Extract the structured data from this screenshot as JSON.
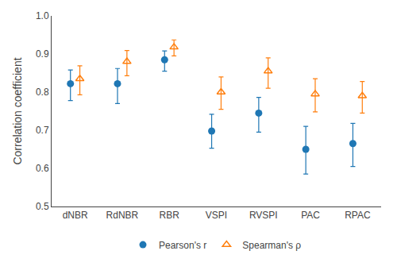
{
  "chart_data": {
    "type": "scatter",
    "categories": [
      "dNBR",
      "RdNBR",
      "RBR",
      "VSPI",
      "RVSPI",
      "PAC",
      "RPAC"
    ],
    "series": [
      {
        "name": "Pearson's r",
        "marker": "circle",
        "values": [
          0.822,
          0.822,
          0.885,
          0.698,
          0.745,
          0.65,
          0.665
        ],
        "lower": [
          0.778,
          0.77,
          0.855,
          0.653,
          0.695,
          0.585,
          0.605
        ],
        "upper": [
          0.858,
          0.862,
          0.908,
          0.742,
          0.786,
          0.71,
          0.718
        ]
      },
      {
        "name": "Spearman's ρ",
        "marker": "triangle-up-open",
        "values": [
          0.835,
          0.88,
          0.918,
          0.8,
          0.855,
          0.795,
          0.79
        ],
        "lower": [
          0.793,
          0.843,
          0.895,
          0.755,
          0.81,
          0.748,
          0.745
        ],
        "upper": [
          0.869,
          0.909,
          0.937,
          0.84,
          0.89,
          0.835,
          0.828
        ]
      }
    ],
    "y_label": "Correlation coefficient",
    "ylim": [
      0.5,
      1.0
    ],
    "yticks": [
      0.5,
      0.6,
      0.7,
      0.8,
      0.9,
      {
        "value": 1.0,
        "label": "1.0"
      }
    ],
    "grid": false,
    "legend": "bottom"
  }
}
